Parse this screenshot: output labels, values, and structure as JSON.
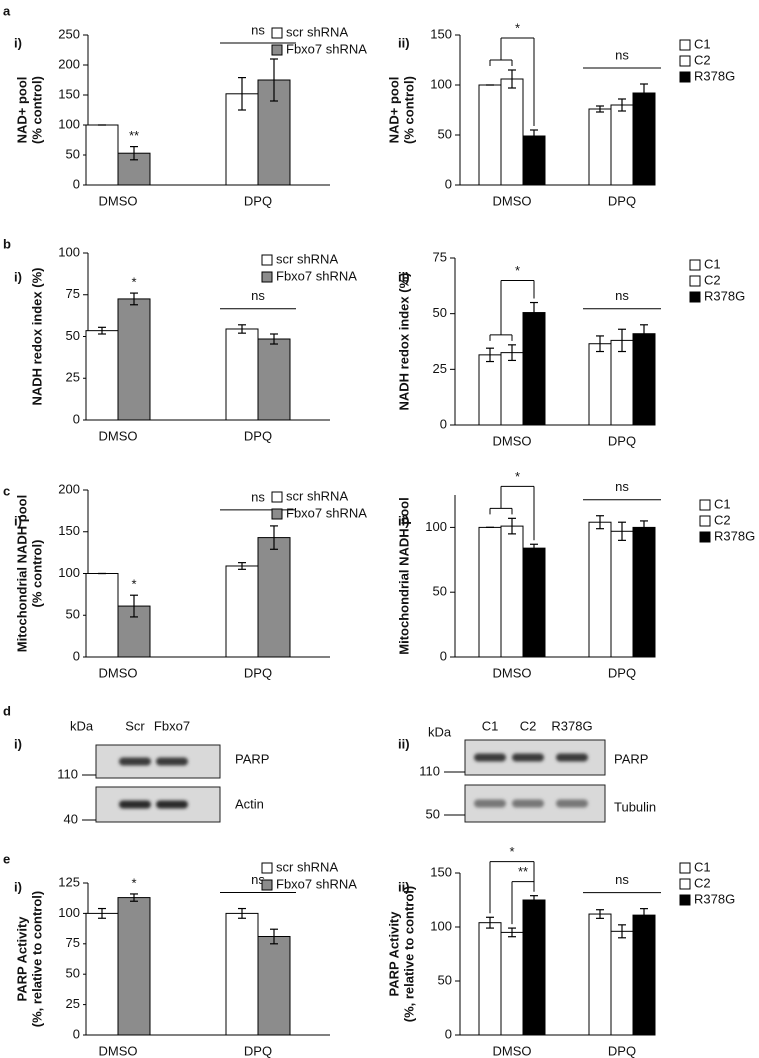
{
  "panels": [
    {
      "letter": "a",
      "parts": [
        "i)",
        "ii)"
      ]
    },
    {
      "letter": "b",
      "parts": [
        "i)",
        "ii)"
      ]
    },
    {
      "letter": "c",
      "parts": [
        "i)",
        "ii)"
      ]
    },
    {
      "letter": "d",
      "parts": [
        "i)",
        "ii)"
      ]
    },
    {
      "letter": "e",
      "parts": [
        "i)",
        "ii)"
      ]
    }
  ],
  "chart_data": [
    {
      "type": "bar",
      "ylabel": [
        "NAD+ pool",
        "(% control)"
      ],
      "categories": [
        "DMSO",
        "DPQ"
      ],
      "series": [
        {
          "name": "scr shRNA",
          "color": "#ffffff",
          "values": [
            100,
            152
          ],
          "errors": [
            0,
            27
          ]
        },
        {
          "name": "Fbxo7 shRNA",
          "color": "#8c8c8c",
          "values": [
            53,
            175
          ],
          "errors": [
            11,
            35
          ]
        }
      ],
      "ylim": [
        0,
        250
      ],
      "yticks": [
        0,
        50,
        100,
        150,
        200,
        250
      ],
      "annotations": [
        "**",
        "ns"
      ]
    },
    {
      "type": "bar",
      "ylabel": [
        "NAD+ pool",
        "(% control)"
      ],
      "categories": [
        "DMSO",
        "DPQ"
      ],
      "series": [
        {
          "name": "C1",
          "color": "#ffffff",
          "values": [
            100,
            76
          ],
          "errors": [
            0,
            3
          ]
        },
        {
          "name": "C2",
          "color": "#ffffff",
          "values": [
            106,
            80
          ],
          "errors": [
            9,
            6
          ]
        },
        {
          "name": "R378G",
          "color": "#000000",
          "values": [
            49,
            92
          ],
          "errors": [
            6,
            9
          ]
        }
      ],
      "ylim": [
        0,
        150
      ],
      "yticks": [
        0,
        50,
        100,
        150
      ],
      "annotations": [
        "*",
        "ns"
      ]
    },
    {
      "type": "bar",
      "ylabel": [
        "NADH redox index (%)"
      ],
      "categories": [
        "DMSO",
        "DPQ"
      ],
      "series": [
        {
          "name": "scr shRNA",
          "color": "#ffffff",
          "values": [
            53.5,
            54.5
          ],
          "errors": [
            2,
            2.5
          ]
        },
        {
          "name": "Fbxo7 shRNA",
          "color": "#8c8c8c",
          "values": [
            72.5,
            48.5
          ],
          "errors": [
            3.5,
            3
          ]
        }
      ],
      "ylim": [
        0,
        100
      ],
      "yticks": [
        0,
        25,
        50,
        75,
        100
      ],
      "annotations": [
        "*",
        "ns"
      ]
    },
    {
      "type": "bar",
      "ylabel": [
        "NADH redox index (%)"
      ],
      "categories": [
        "DMSO",
        "DPQ"
      ],
      "series": [
        {
          "name": "C1",
          "color": "#ffffff",
          "values": [
            31.5,
            36.5
          ],
          "errors": [
            3,
            3.5
          ]
        },
        {
          "name": "C2",
          "color": "#ffffff",
          "values": [
            32.5,
            38
          ],
          "errors": [
            3.5,
            5
          ]
        },
        {
          "name": "R378G",
          "color": "#000000",
          "values": [
            50.5,
            41
          ],
          "errors": [
            4.5,
            4
          ]
        }
      ],
      "ylim": [
        0,
        75
      ],
      "yticks": [
        0,
        25,
        50,
        75
      ],
      "annotations": [
        "*",
        "ns"
      ]
    },
    {
      "type": "bar",
      "ylabel": [
        "Mitochondrial NADH pool",
        "(% control)"
      ],
      "categories": [
        "DMSO",
        "DPQ"
      ],
      "series": [
        {
          "name": "scr shRNA",
          "color": "#ffffff",
          "values": [
            100,
            109
          ],
          "errors": [
            0,
            4
          ]
        },
        {
          "name": "Fbxo7 shRNA",
          "color": "#8c8c8c",
          "values": [
            61,
            143
          ],
          "errors": [
            13,
            14
          ]
        }
      ],
      "ylim": [
        0,
        200
      ],
      "yticks": [
        0,
        50,
        100,
        150,
        200
      ],
      "annotations": [
        "*",
        "ns"
      ]
    },
    {
      "type": "bar",
      "ylabel": [
        "Mitochondrial NADH pool"
      ],
      "categories": [
        "DMSO",
        "DPQ"
      ],
      "series": [
        {
          "name": "C1",
          "color": "#ffffff",
          "values": [
            100,
            104
          ],
          "errors": [
            0,
            5
          ]
        },
        {
          "name": "C2",
          "color": "#ffffff",
          "values": [
            101,
            97
          ],
          "errors": [
            6,
            7
          ]
        },
        {
          "name": "R378G",
          "color": "#000000",
          "values": [
            84,
            100
          ],
          "errors": [
            3,
            5
          ]
        }
      ],
      "ylim": [
        0,
        125
      ],
      "yticks": [
        0,
        50,
        100
      ],
      "annotations": [
        "*",
        "ns"
      ]
    },
    {
      "type": "bar",
      "ylabel": [
        "PARP Activity",
        "(%, relative to control)"
      ],
      "categories": [
        "DMSO",
        "DPQ"
      ],
      "series": [
        {
          "name": "scr shRNA",
          "color": "#ffffff",
          "values": [
            100,
            100
          ],
          "errors": [
            4,
            4
          ]
        },
        {
          "name": "Fbxo7 shRNA",
          "color": "#8c8c8c",
          "values": [
            113,
            81
          ],
          "errors": [
            3,
            6
          ]
        }
      ],
      "ylim": [
        0,
        125
      ],
      "yticks": [
        0,
        25,
        50,
        75,
        100,
        125
      ],
      "annotations": [
        "*",
        "ns"
      ]
    },
    {
      "type": "bar",
      "ylabel": [
        "PARP Activity",
        "(%, relative to control)"
      ],
      "categories": [
        "DMSO",
        "DPQ"
      ],
      "series": [
        {
          "name": "C1",
          "color": "#ffffff",
          "values": [
            104,
            112
          ],
          "errors": [
            5,
            4
          ]
        },
        {
          "name": "C2",
          "color": "#ffffff",
          "values": [
            95,
            96
          ],
          "errors": [
            4,
            6
          ]
        },
        {
          "name": "R378G",
          "color": "#000000",
          "values": [
            125,
            111
          ],
          "errors": [
            4,
            6
          ]
        }
      ],
      "ylim": [
        0,
        150
      ],
      "yticks": [
        0,
        50,
        100,
        150
      ],
      "annotations": [
        "*",
        "**",
        "ns"
      ]
    }
  ],
  "blots": [
    {
      "unit": "kDa",
      "lanes": [
        "Scr",
        "Fbxo7"
      ],
      "markers": [
        110,
        40
      ],
      "bands": [
        "PARP",
        "Actin"
      ]
    },
    {
      "unit": "kDa",
      "lanes": [
        "C1",
        "C2",
        "R378G"
      ],
      "markers": [
        110,
        50
      ],
      "bands": [
        "PARP",
        "Tubulin"
      ]
    }
  ]
}
